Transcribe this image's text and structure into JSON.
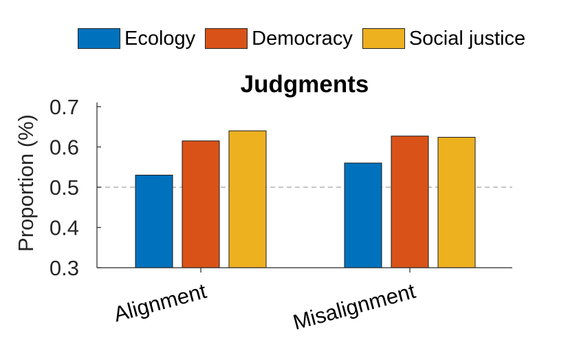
{
  "chart_data": {
    "type": "bar",
    "title": "Judgments",
    "xlabel": "",
    "ylabel": "Proportion (%)",
    "categories": [
      "Alignment",
      "Misalignment"
    ],
    "series": [
      {
        "name": "Ecology",
        "color": "#0072BD",
        "values": [
          0.53,
          0.56
        ]
      },
      {
        "name": "Democracy",
        "color": "#D95319",
        "values": [
          0.615,
          0.627
        ]
      },
      {
        "name": "Social justice",
        "color": "#EDB120",
        "values": [
          0.64,
          0.624
        ]
      }
    ],
    "ylim": [
      0.3,
      0.7
    ],
    "yticks": [
      "0.3",
      "0.4",
      "0.5",
      "0.6",
      "0.7"
    ],
    "reference_line": {
      "y": 0.5,
      "style": "dashed",
      "color": "#b3b3b3"
    },
    "legend_position": "top",
    "grid": false
  }
}
